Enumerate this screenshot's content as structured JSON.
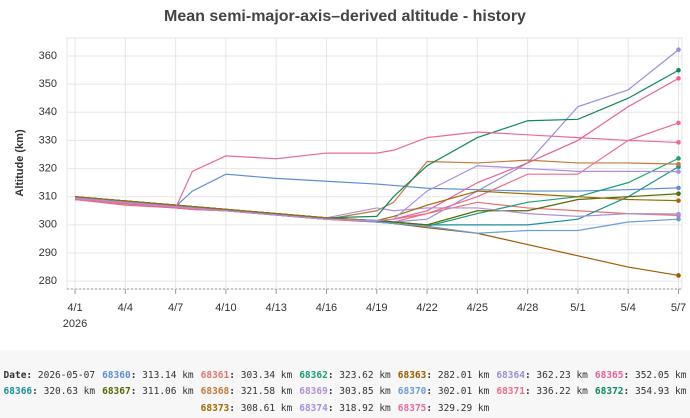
{
  "chart_data": {
    "type": "line",
    "title": "Mean semi-major-axis–derived altitude - history",
    "y_label": "Altitude (km)",
    "year_label": "2026",
    "x": [
      "2026-04-01",
      "2026-04-04",
      "2026-04-07",
      "2026-04-08",
      "2026-04-10",
      "2026-04-13",
      "2026-04-16",
      "2026-04-19",
      "2026-04-20",
      "2026-04-22",
      "2026-04-25",
      "2026-04-28",
      "2026-05-01",
      "2026-05-04",
      "2026-05-07"
    ],
    "xlim": [
      "2026-03-31T12:30",
      "2026-05-07T05:00"
    ],
    "xticks": [
      {
        "value": "2026-04-01",
        "label": "4/1"
      },
      {
        "value": "2026-04-04",
        "label": "4/4"
      },
      {
        "value": "2026-04-07",
        "label": "4/7"
      },
      {
        "value": "2026-04-10",
        "label": "4/10"
      },
      {
        "value": "2026-04-13",
        "label": "4/13"
      },
      {
        "value": "2026-04-16",
        "label": "4/16"
      },
      {
        "value": "2026-04-19",
        "label": "4/19"
      },
      {
        "value": "2026-04-22",
        "label": "4/22"
      },
      {
        "value": "2026-04-25",
        "label": "4/25"
      },
      {
        "value": "2026-04-28",
        "label": "4/28"
      },
      {
        "value": "2026-05-01",
        "label": "5/1"
      },
      {
        "value": "2026-05-04",
        "label": "5/4"
      },
      {
        "value": "2026-05-07",
        "label": "5/7"
      }
    ],
    "ylim": [
      277.2,
      366.4
    ],
    "yticks": [
      280,
      290,
      300,
      310,
      320,
      330,
      340,
      350,
      360
    ],
    "grid": true,
    "series": [
      {
        "name": "68360",
        "color": "#5b8fd6",
        "values": [
          309.5,
          308,
          306.5,
          312,
          318,
          316.5,
          315.5,
          314.5,
          314,
          313,
          312.5,
          312,
          312,
          312.5,
          313.14
        ]
      },
      {
        "name": "68361",
        "color": "#e57373",
        "values": [
          309,
          307,
          306,
          305.5,
          305,
          303.5,
          302,
          301,
          301,
          304,
          308,
          306,
          305,
          304,
          303.34
        ]
      },
      {
        "name": "68362",
        "color": "#1a9e77",
        "values": [
          310,
          308.5,
          307,
          306.5,
          305.5,
          304,
          302.5,
          301,
          300.5,
          299.5,
          304,
          308,
          310,
          315,
          323.62
        ]
      },
      {
        "name": "68363",
        "color": "#a05a00",
        "values": [
          310,
          308.5,
          307,
          306.5,
          305.5,
          304,
          302.5,
          301,
          300.5,
          299,
          297,
          293,
          289,
          285,
          282.01
        ]
      },
      {
        "name": "68364",
        "color": "#9b8fd6",
        "values": [
          309.5,
          308,
          306.5,
          306,
          305,
          303.5,
          302,
          301.5,
          301,
          302,
          312,
          322,
          342,
          348,
          362.23
        ]
      },
      {
        "name": "68365",
        "color": "#e8609a",
        "values": [
          309,
          307.5,
          306,
          305.5,
          305,
          303.5,
          302,
          301,
          302,
          305,
          315,
          322,
          330,
          342,
          352.05
        ]
      },
      {
        "name": "68366",
        "color": "#1a8f9e",
        "values": [
          310,
          308.5,
          307,
          306.5,
          305.5,
          304,
          302.5,
          301.5,
          301,
          300,
          300,
          300,
          302,
          310,
          320.63
        ]
      },
      {
        "name": "68367",
        "color": "#556b00",
        "values": [
          310,
          308.5,
          307,
          306.5,
          305.5,
          304,
          302.5,
          301.5,
          301,
          300,
          305,
          305,
          309,
          310,
          311.06
        ]
      },
      {
        "name": "68368",
        "color": "#c47a3a",
        "values": [
          309.5,
          308,
          306.5,
          306,
          305,
          303.5,
          302,
          305,
          308,
          322.5,
          322,
          323,
          322,
          322,
          321.58
        ]
      },
      {
        "name": "68369",
        "color": "#b08fd6",
        "values": [
          309.5,
          308,
          306.5,
          306,
          305.5,
          304,
          302.5,
          306,
          305,
          306,
          306,
          304,
          303,
          304,
          303.85
        ]
      },
      {
        "name": "68370",
        "color": "#6a9fd6",
        "values": [
          310,
          308.5,
          307,
          306.5,
          305.5,
          304,
          302.5,
          301,
          300.5,
          299.5,
          297,
          298,
          298,
          301,
          302.01
        ]
      },
      {
        "name": "68371",
        "color": "#f06b8a",
        "values": [
          309,
          307.5,
          306,
          305.5,
          305,
          303.5,
          302,
          301.5,
          302,
          304,
          310,
          318,
          318,
          330,
          336.22
        ]
      },
      {
        "name": "68372",
        "color": "#0b8a5a",
        "values": [
          310,
          308.5,
          307,
          306.5,
          305.5,
          304,
          302.5,
          303,
          310,
          321,
          331,
          337,
          337.5,
          345,
          354.93
        ]
      },
      {
        "name": "68373",
        "color": "#a06a00",
        "values": [
          310,
          308.5,
          307,
          306.5,
          305.5,
          304,
          302.5,
          301.5,
          303,
          307,
          312,
          311,
          310,
          309,
          308.61
        ]
      },
      {
        "name": "68374",
        "color": "#a98fe0",
        "values": [
          309.5,
          308,
          306.5,
          306,
          305,
          303.5,
          302,
          301.5,
          302,
          312,
          321,
          320,
          319,
          319,
          318.92
        ]
      },
      {
        "name": "68375",
        "color": "#e86aa0",
        "values": [
          309,
          307.5,
          306,
          319,
          324.5,
          323.5,
          325.5,
          325.5,
          326.5,
          331,
          333,
          332,
          331,
          330,
          329.29
        ]
      }
    ]
  },
  "footer": {
    "label": "Date:",
    "date": "2026-05-07",
    "readouts": [
      "313.14 km",
      "303.34 km",
      "323.62 km",
      "282.01 km",
      "362.23 km",
      "352.05 km",
      "320.63 km",
      "311.06 km",
      "321.58 km",
      "303.85 km",
      "302.01 km",
      "336.22 km",
      "354.93 km",
      "308.61 km",
      "318.92 km",
      "329.29 km"
    ]
  }
}
